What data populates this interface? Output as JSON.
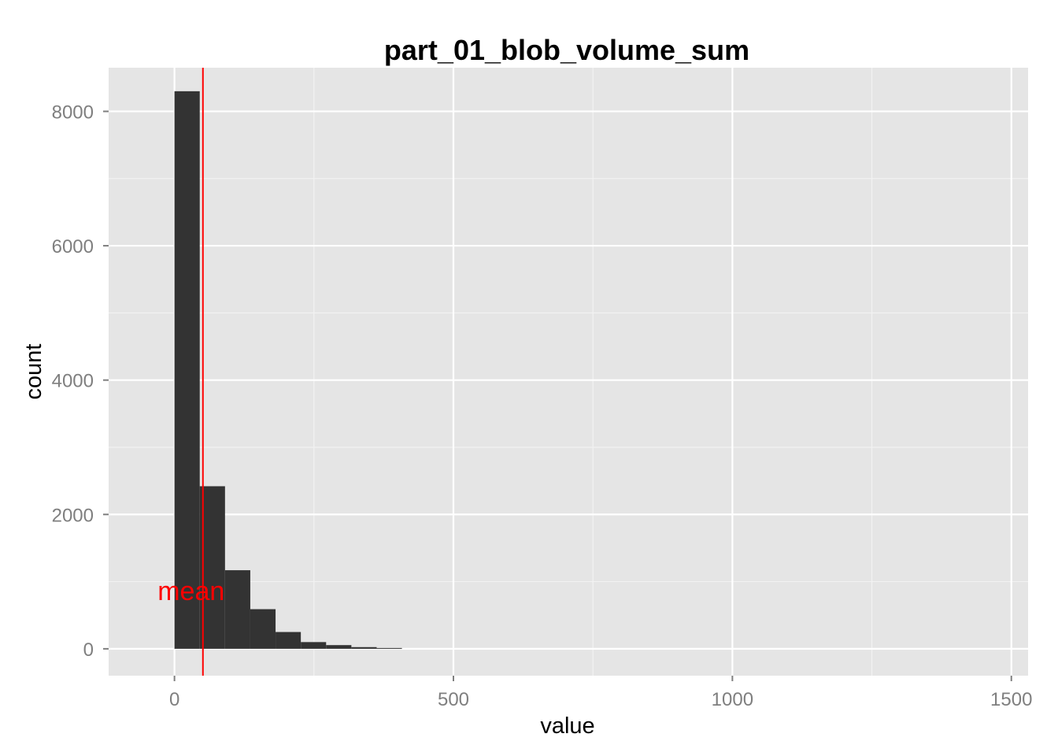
{
  "chart_data": {
    "type": "bar",
    "title": "part_01_blob_volume_sum",
    "xlabel": "value",
    "ylabel": "count",
    "xlim": [
      -118,
      1530
    ],
    "ylim": [
      -400,
      8650
    ],
    "x_ticks": [
      0,
      500,
      1000,
      1500
    ],
    "x_tick_labels": [
      "0",
      "500",
      "1000",
      "1500"
    ],
    "y_ticks": [
      0,
      2000,
      4000,
      6000,
      8000
    ],
    "y_tick_labels": [
      "0",
      "2000",
      "4000",
      "6000",
      "8000"
    ],
    "bin_width": 45.3,
    "bins": [
      {
        "x0": 0,
        "count": 8300
      },
      {
        "x0": 45.3,
        "count": 2420
      },
      {
        "x0": 90.6,
        "count": 1170
      },
      {
        "x0": 135.9,
        "count": 590
      },
      {
        "x0": 181.2,
        "count": 250
      },
      {
        "x0": 226.5,
        "count": 100
      },
      {
        "x0": 271.8,
        "count": 55
      },
      {
        "x0": 317.1,
        "count": 25
      },
      {
        "x0": 362.4,
        "count": 12
      }
    ],
    "mean_line": {
      "value": 51,
      "label": "mean",
      "label_y": 820,
      "color": "#ff0000"
    },
    "grid": true,
    "colors": {
      "panel": "#e5e5e5",
      "grid_major": "#ffffff",
      "grid_minor": "#f2f2f2",
      "bar": "#333333",
      "tick": "#7f7f7f"
    }
  }
}
